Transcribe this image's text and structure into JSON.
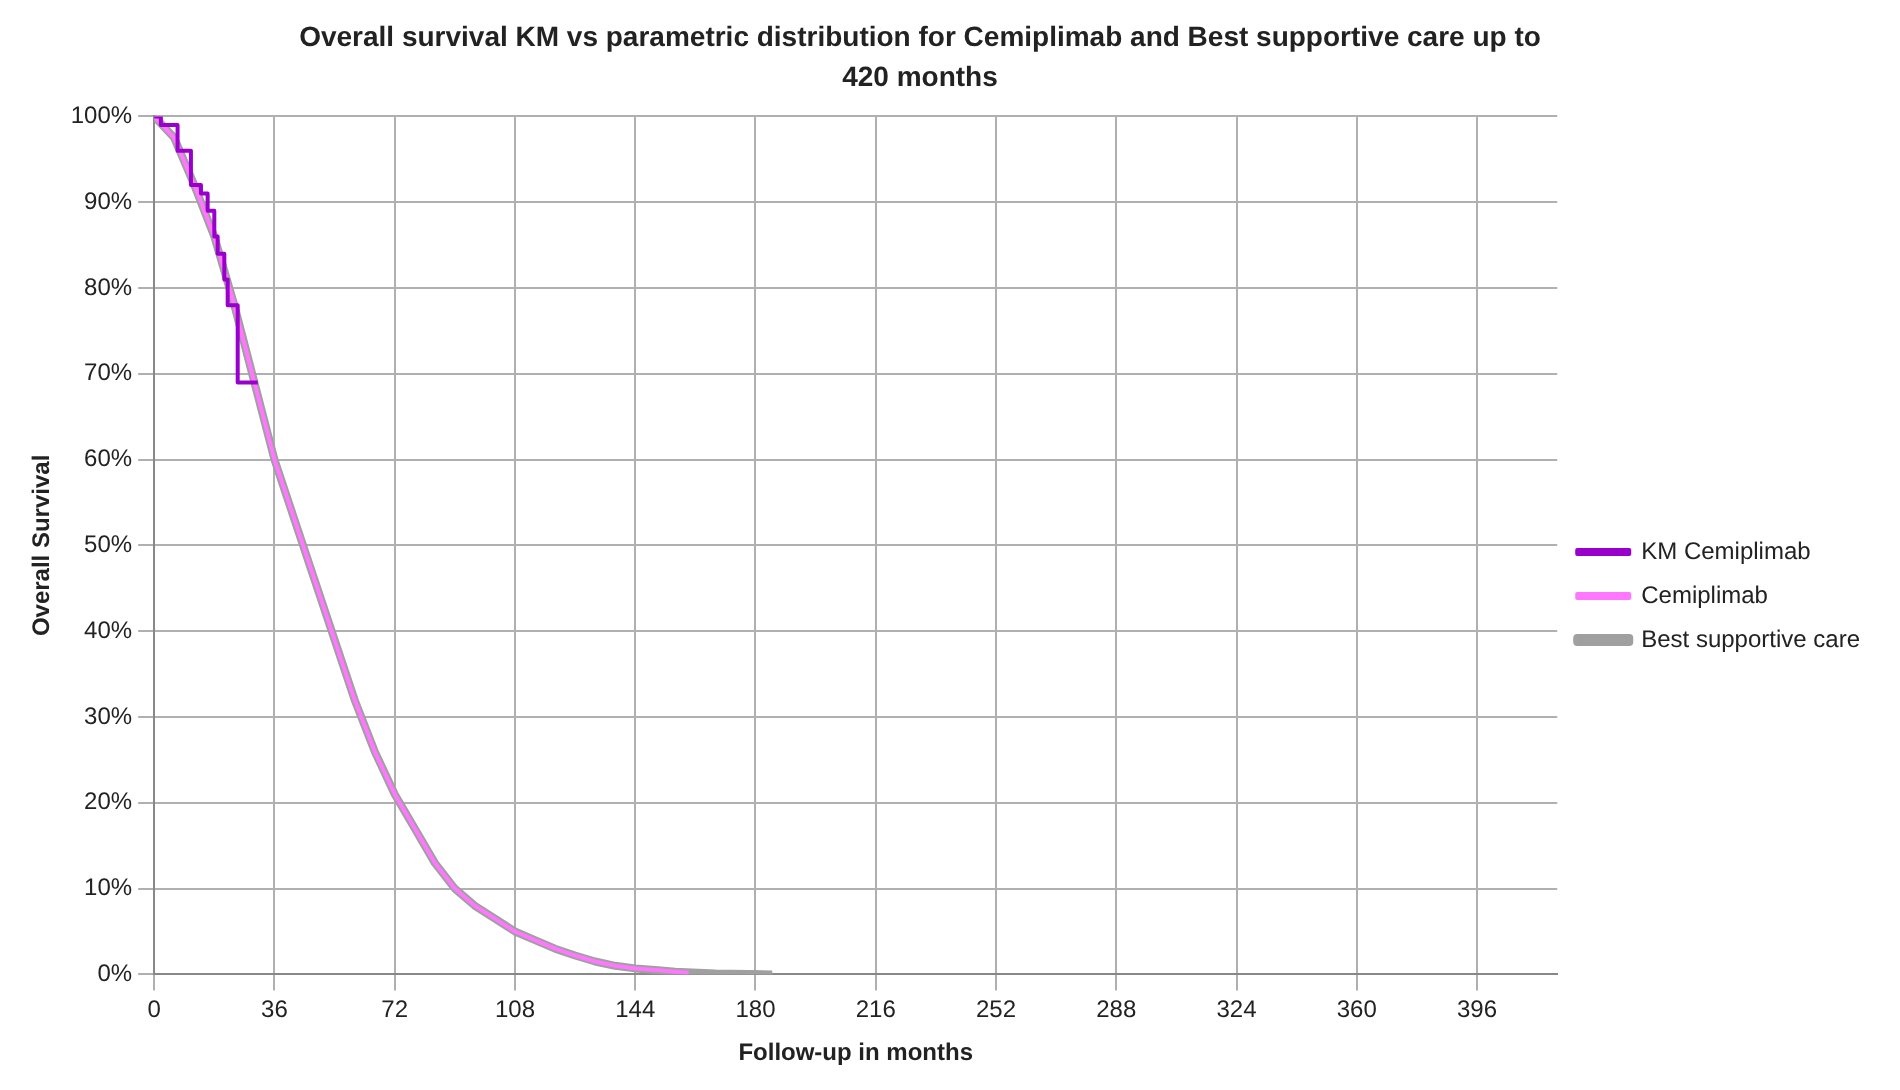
{
  "chart_data": {
    "type": "line",
    "title": "Overall survival KM vs parametric distribution for Cemiplimab and Best supportive care up to 420 months",
    "xlabel": "Follow-up in months",
    "ylabel": "Overall Survival",
    "xlim": [
      0,
      420
    ],
    "xticks": [
      0,
      36,
      72,
      108,
      144,
      180,
      216,
      252,
      288,
      324,
      360,
      396
    ],
    "ylim": [
      0,
      100
    ],
    "yticks": [
      {
        "value": 0,
        "label": "0%"
      },
      {
        "value": 10,
        "label": "10%"
      },
      {
        "value": 20,
        "label": "20%"
      },
      {
        "value": 30,
        "label": "30%"
      },
      {
        "value": 40,
        "label": "40%"
      },
      {
        "value": 50,
        "label": "50%"
      },
      {
        "value": 60,
        "label": "60%"
      },
      {
        "value": 70,
        "label": "70%"
      },
      {
        "value": 80,
        "label": "80%"
      },
      {
        "value": 90,
        "label": "90%"
      },
      {
        "value": 100,
        "label": "100%"
      }
    ],
    "grid": true,
    "legend": "right",
    "marker": "none",
    "series": [
      {
        "name": "Cemiplimab",
        "color": "#ff77ff",
        "x": [
          0,
          6,
          12,
          18,
          24,
          30,
          36,
          42,
          48,
          54,
          60,
          66,
          72,
          78,
          84,
          90,
          96,
          102,
          108,
          114,
          120,
          126,
          132,
          138,
          144,
          150,
          156,
          160
        ],
        "values": [
          100,
          97.5,
          92,
          86,
          78,
          69,
          60,
          53,
          46,
          39,
          32,
          26,
          21,
          17,
          13,
          10,
          8,
          6.5,
          5,
          4,
          3,
          2.2,
          1.5,
          1,
          0.7,
          0.5,
          0.3,
          0.2
        ]
      },
      {
        "name": "Best supportive care",
        "color": "#a0a0a0",
        "x": [
          0,
          6,
          12,
          18,
          24,
          30,
          36,
          42,
          48,
          54,
          60,
          66,
          72,
          78,
          84,
          90,
          96,
          102,
          108,
          114,
          120,
          126,
          132,
          138,
          144,
          150,
          156,
          168,
          185
        ],
        "values": [
          100,
          97.5,
          92,
          86,
          78,
          69,
          60,
          53,
          46,
          39,
          32,
          26,
          21,
          17,
          13,
          10,
          8,
          6.5,
          5,
          4,
          3,
          2.2,
          1.5,
          1,
          0.7,
          0.5,
          0.3,
          0.1,
          0
        ]
      },
      {
        "name": "KM Cemiplimab",
        "type": "step",
        "color": "#9900cc",
        "x": [
          0,
          2,
          7,
          11,
          14,
          16,
          18,
          19,
          21,
          22,
          25,
          31
        ],
        "values": [
          100,
          99,
          96,
          92,
          91,
          89,
          86,
          84,
          81,
          78,
          69,
          69
        ]
      }
    ]
  }
}
